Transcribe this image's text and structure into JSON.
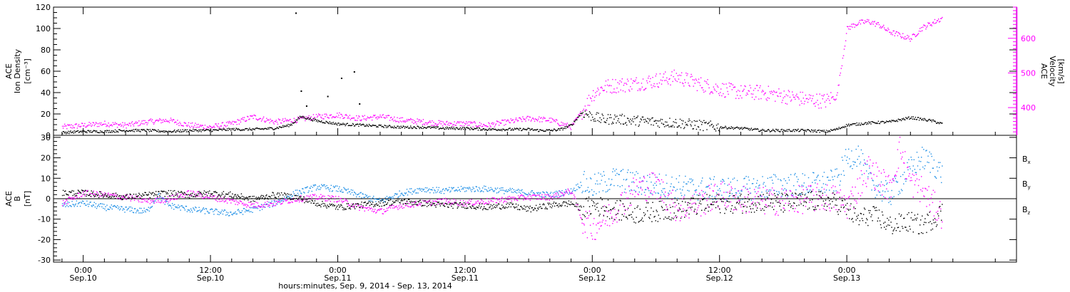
{
  "chart_data": [
    {
      "type": "scatter",
      "panel": "ion-density-velocity",
      "ylabel": [
        "ACE",
        "Ion Density",
        "[cm⁻³]"
      ],
      "ylabel_right": [
        "ACE",
        "Velocity",
        "[km/s]"
      ],
      "ylim": [
        0,
        120
      ],
      "ylim_right": [
        320,
        690
      ],
      "yticks": [
        "0",
        "20",
        "40",
        "60",
        "80",
        "100",
        "120"
      ],
      "yticks_right": [
        "400",
        "500",
        "600"
      ],
      "colors": {
        "density": "#000000",
        "velocity": "#ff00ff"
      },
      "series": [
        {
          "label": "density",
          "x": [
            -2.0,
            0.0,
            2.0,
            4.0,
            6.0,
            8.0,
            10.0,
            12.0,
            14.0,
            16.0,
            18.0,
            19.5,
            20.5,
            22.0,
            24.0,
            26.0,
            28.0,
            30.0,
            32.0,
            34.0,
            36.0,
            38.0,
            40.0,
            42.0,
            43.0,
            44.0,
            45.0,
            46.0,
            47.0,
            48.0,
            49.0,
            50.0,
            52.0,
            54.0,
            56.0,
            58.0,
            60.0,
            62.0,
            64.0,
            66.0,
            68.0,
            70.0,
            71.0,
            72.0,
            74.0,
            76.0,
            78.0,
            80.0,
            81.0
          ],
          "y": [
            3,
            4,
            4,
            5,
            5,
            4,
            5,
            5,
            6,
            6,
            7,
            10,
            18,
            14,
            11,
            10,
            9,
            8,
            8,
            7,
            7,
            6,
            6,
            6,
            5,
            5,
            6,
            10,
            22,
            18,
            15,
            16,
            14,
            13,
            12,
            10,
            8,
            7,
            5,
            5,
            5,
            4,
            6,
            10,
            12,
            13,
            17,
            14,
            11
          ]
        },
        {
          "label": "velocity",
          "x": [
            -2.0,
            0.0,
            2.0,
            4.0,
            6.0,
            8.0,
            10.0,
            12.0,
            14.0,
            16.0,
            18.0,
            20.0,
            22.0,
            24.0,
            26.0,
            28.0,
            30.0,
            32.0,
            34.0,
            36.0,
            38.0,
            40.0,
            42.0,
            44.0,
            46.0,
            47.0,
            48.0,
            49.0,
            50.0,
            52.0,
            54.0,
            56.0,
            58.0,
            60.0,
            62.0,
            64.0,
            66.0,
            68.0,
            70.0,
            70.5,
            71.0,
            72.0,
            73.0,
            74.0,
            75.0,
            76.0,
            78.0,
            79.0,
            80.0,
            81.0
          ],
          "y": [
            345,
            350,
            355,
            350,
            360,
            365,
            350,
            345,
            355,
            375,
            360,
            365,
            375,
            380,
            370,
            375,
            365,
            360,
            355,
            355,
            350,
            360,
            370,
            365,
            345,
            390,
            440,
            460,
            465,
            470,
            480,
            490,
            470,
            455,
            445,
            445,
            435,
            425,
            420,
            430,
            430,
            630,
            645,
            650,
            640,
            620,
            600,
            630,
            645,
            660
          ]
        }
      ],
      "scattered_points": [
        {
          "x": 20.0,
          "y": 115
        },
        {
          "x": 20.5,
          "y": 42
        },
        {
          "x": 24.3,
          "y": 54
        },
        {
          "x": 25.5,
          "y": 60
        },
        {
          "x": 23.0,
          "y": 37
        },
        {
          "x": 21.0,
          "y": 28
        },
        {
          "x": 26.0,
          "y": 30
        }
      ]
    },
    {
      "type": "scatter",
      "panel": "magnetic-field",
      "ylabel": [
        "ACE",
        "B",
        "[nT]"
      ],
      "ylim": [
        -31,
        31
      ],
      "yticks": [
        "-30",
        "-20",
        "-10",
        "0",
        "10",
        "20",
        "30"
      ],
      "legend_labels": [
        "Bx",
        "By",
        "Bz"
      ],
      "legend_placement": "right",
      "colors": {
        "Bx": "#000000",
        "By": "#1e8fe6",
        "Bz": "#ff00ff"
      },
      "series": [
        {
          "name": "Bx",
          "x": [
            -2.0,
            0.0,
            2.0,
            4.0,
            6.0,
            8.0,
            10.0,
            12.0,
            14.0,
            16.0,
            18.0,
            20.0,
            22.0,
            24.0,
            26.0,
            28.0,
            30.0,
            32.0,
            34.0,
            36.0,
            38.0,
            40.0,
            42.0,
            44.0,
            46.0,
            47.0,
            48.0,
            50.0,
            52.0,
            54.0,
            56.0,
            58.0,
            60.0,
            62.0,
            64.0,
            66.0,
            68.0,
            70.0,
            71.0,
            72.0,
            73.0,
            74.0,
            75.0,
            76.0,
            78.0,
            79.0,
            80.0,
            81.0
          ],
          "y": [
            3,
            3,
            2,
            1,
            2,
            3,
            2,
            3,
            2,
            0,
            2,
            1,
            -2,
            -4,
            -3,
            -2,
            -1,
            -2,
            -3,
            -3,
            -4,
            -3,
            -5,
            -3,
            -2,
            -5,
            -3,
            -5,
            -7,
            -6,
            -5,
            -3,
            -2,
            -2,
            -1,
            -2,
            -1,
            -1,
            -2,
            -5,
            -10,
            -8,
            -9,
            -13,
            -11,
            -13,
            -10,
            -6
          ]
        },
        {
          "name": "By",
          "x": [
            -2.0,
            0.0,
            2.0,
            4.0,
            6.0,
            7.0,
            8.0,
            10.0,
            12.0,
            14.0,
            16.0,
            18.0,
            20.0,
            22.0,
            24.0,
            26.0,
            28.0,
            30.0,
            32.0,
            34.0,
            36.0,
            38.0,
            40.0,
            42.0,
            44.0,
            46.0,
            47.0,
            48.0,
            50.0,
            52.0,
            54.0,
            56.0,
            58.0,
            60.0,
            62.0,
            64.0,
            66.0,
            68.0,
            70.0,
            71.0,
            72.0,
            73.0,
            74.0,
            75.0,
            76.0,
            78.0,
            79.0,
            80.0,
            81.0
          ],
          "y": [
            -3,
            -2,
            -4,
            -5,
            -6,
            2,
            -3,
            -5,
            -6,
            -7,
            -5,
            -2,
            3,
            6,
            5,
            2,
            -1,
            3,
            5,
            4,
            5,
            5,
            4,
            3,
            2,
            4,
            8,
            6,
            10,
            8,
            7,
            6,
            5,
            5,
            5,
            6,
            7,
            7,
            8,
            9,
            20,
            22,
            10,
            5,
            2,
            15,
            20,
            18,
            12
          ]
        },
        {
          "name": "Bz",
          "x": [
            -2.0,
            0.0,
            2.0,
            4.0,
            6.0,
            8.0,
            10.0,
            12.0,
            14.0,
            16.0,
            18.0,
            20.0,
            22.0,
            24.0,
            26.0,
            28.0,
            30.0,
            32.0,
            34.0,
            36.0,
            38.0,
            40.0,
            42.0,
            44.0,
            46.0,
            47.0,
            48.0,
            50.0,
            52.0,
            54.0,
            56.0,
            58.0,
            60.0,
            62.0,
            64.0,
            66.0,
            68.0,
            70.0,
            71.0,
            72.0,
            73.0,
            74.0,
            75.0,
            76.0,
            77.0,
            78.0,
            79.0,
            80.0,
            81.0
          ],
          "y": [
            -2,
            3,
            2,
            1,
            -1,
            0,
            3,
            1,
            -1,
            -3,
            -2,
            0,
            1,
            0,
            -4,
            -6,
            -3,
            -2,
            -1,
            -2,
            -1,
            0,
            1,
            1,
            4,
            -10,
            -14,
            -6,
            5,
            7,
            -5,
            -2,
            2,
            0,
            -1,
            -1,
            0,
            1,
            0,
            -3,
            5,
            15,
            10,
            5,
            25,
            8,
            5,
            -2,
            -8
          ]
        }
      ]
    }
  ],
  "x_axis": {
    "min": -2.8,
    "max": 88.0,
    "ticks": [
      {
        "t": 0,
        "time": "0:00",
        "date": "Sep.10"
      },
      {
        "t": 12,
        "time": "12:00",
        "date": "Sep.10"
      },
      {
        "t": 24,
        "time": "0:00",
        "date": "Sep.11"
      },
      {
        "t": 36,
        "time": "12:00",
        "date": "Sep.11"
      },
      {
        "t": 48,
        "time": "0:00",
        "date": "Sep.12"
      },
      {
        "t": 60,
        "time": "12:00",
        "date": "Sep.12"
      },
      {
        "t": 72,
        "time": "0:00",
        "date": "Sep.13"
      }
    ],
    "title": "hours:minutes, Sep.  9, 2014 - Sep. 13, 2014"
  }
}
